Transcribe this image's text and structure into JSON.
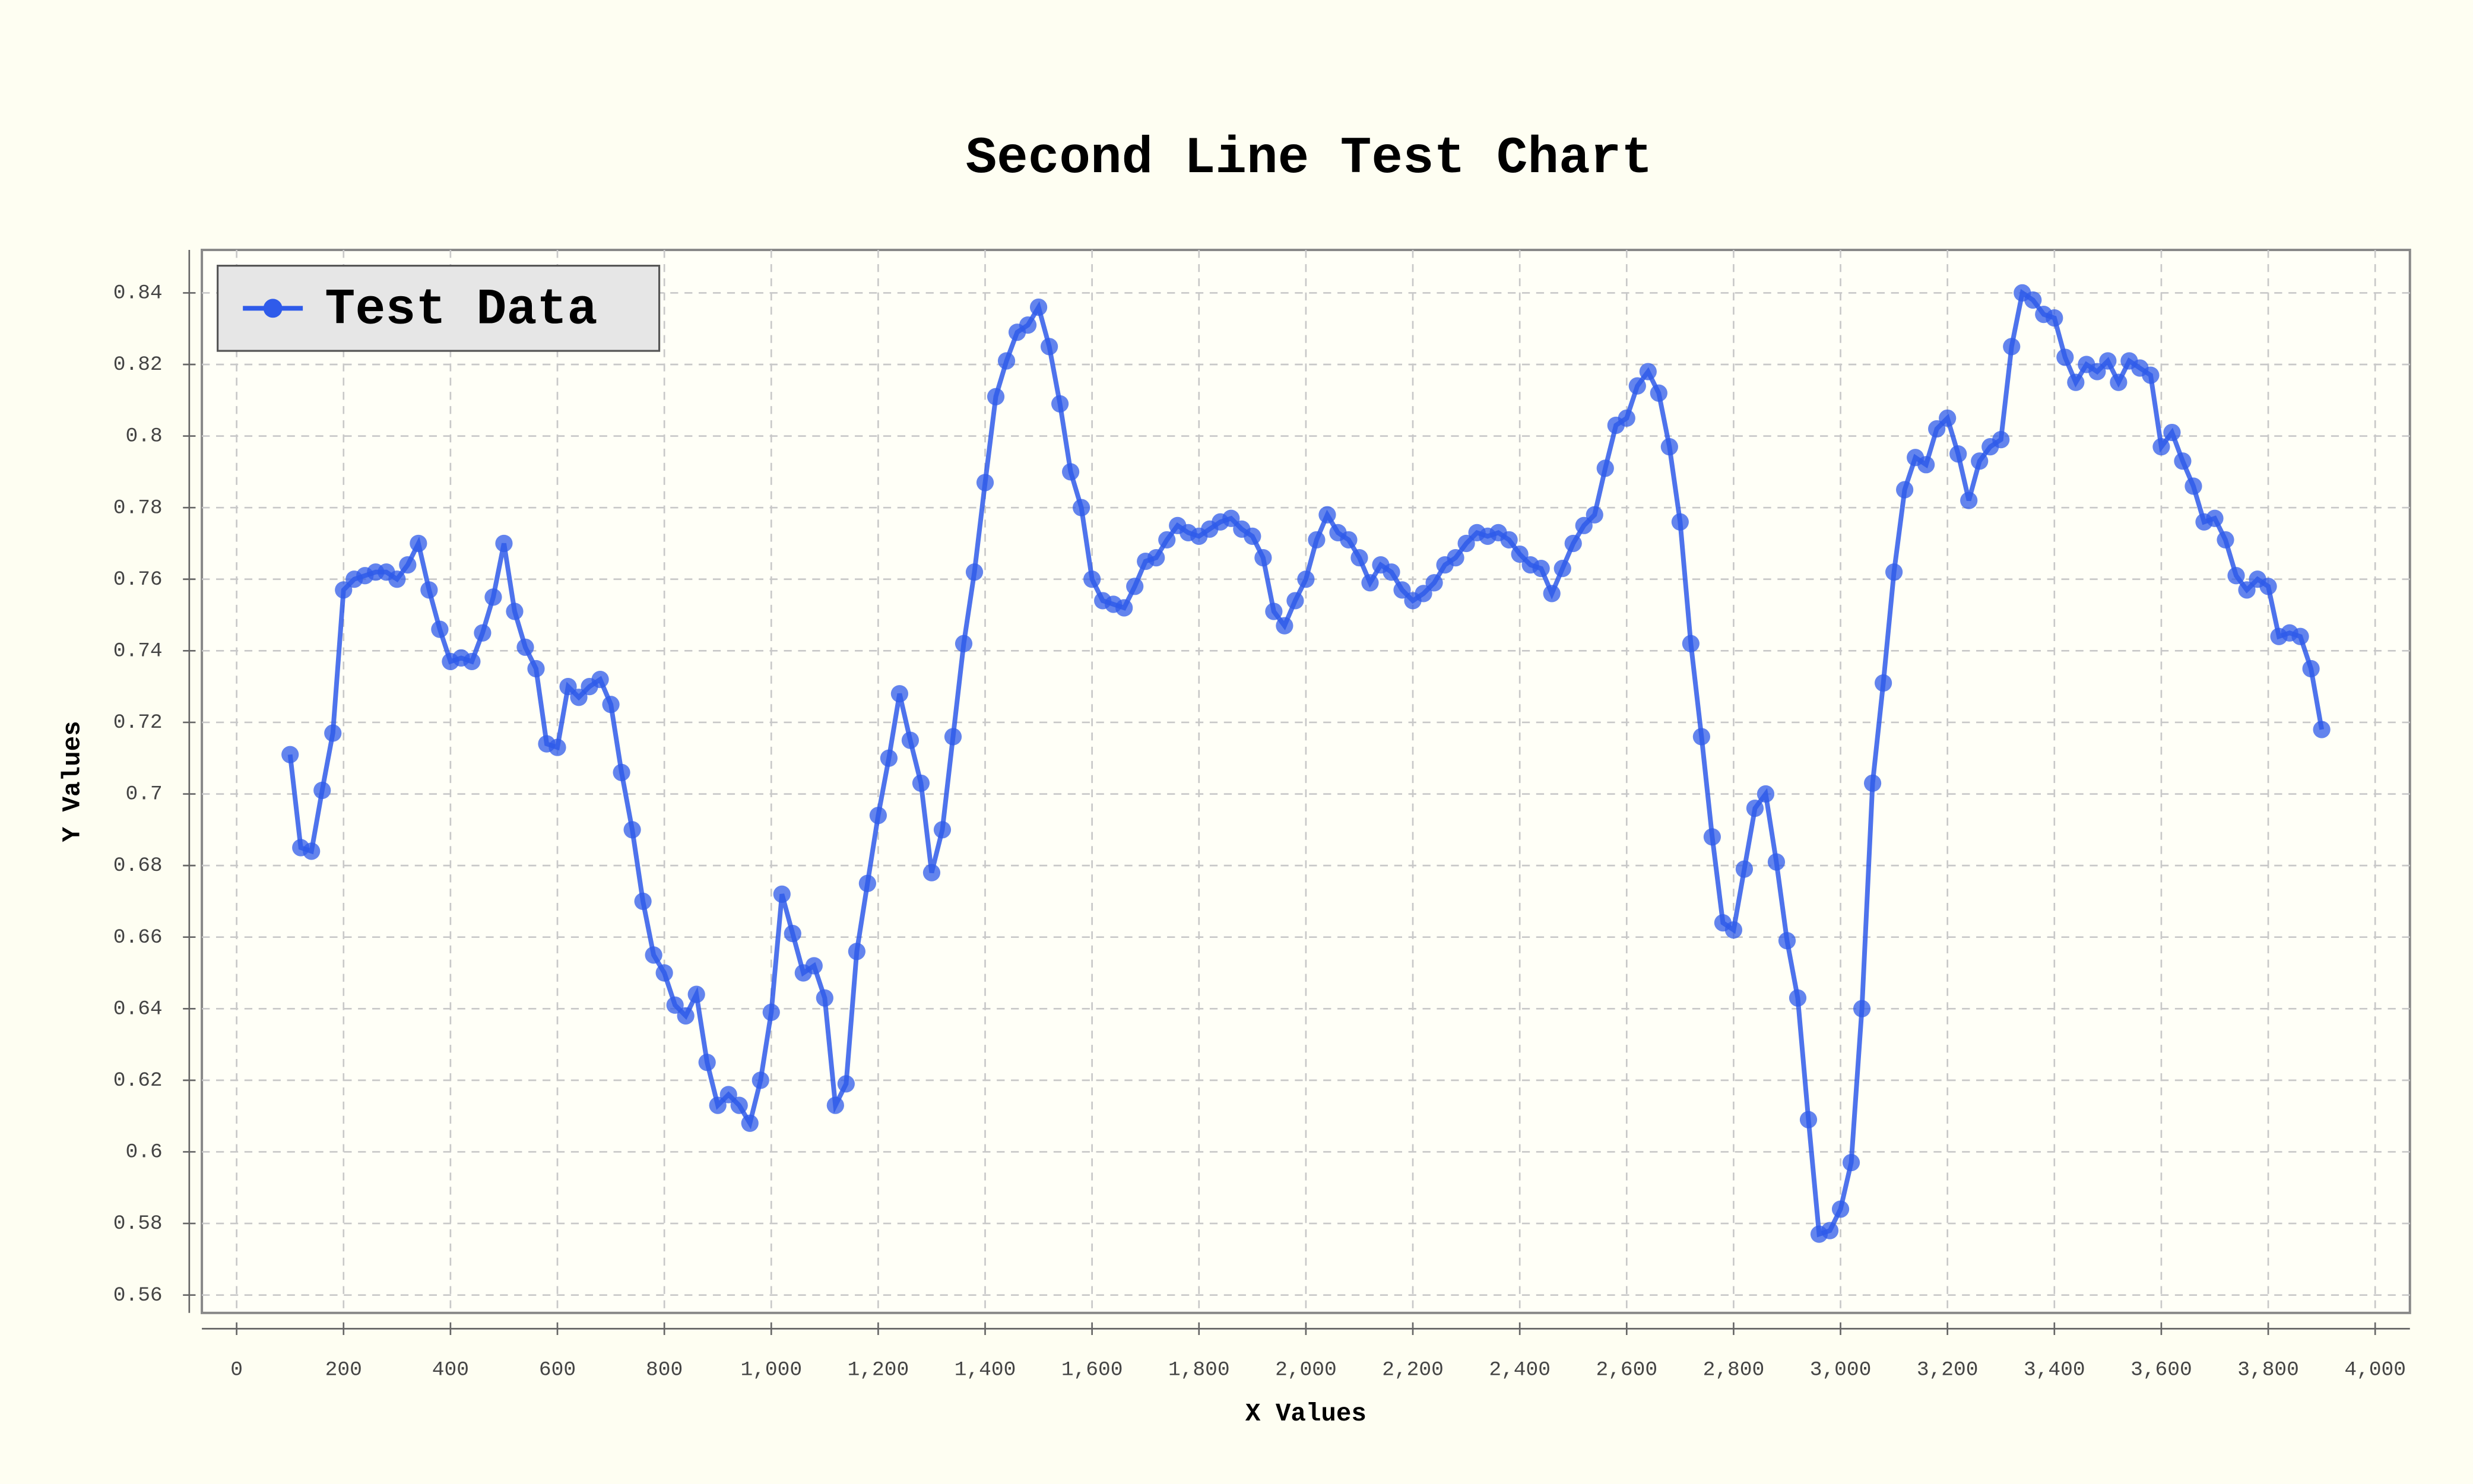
{
  "chart_data": {
    "type": "line",
    "title": "Second Line Test Chart",
    "x_label": "X Values",
    "y_label": "Y Values",
    "x": [
      100,
      120,
      140,
      160,
      180,
      200,
      220,
      240,
      260,
      280,
      300,
      320,
      340,
      360,
      380,
      400,
      420,
      440,
      460,
      480,
      500,
      520,
      540,
      560,
      580,
      600,
      620,
      640,
      660,
      680,
      700,
      720,
      740,
      760,
      780,
      800,
      820,
      840,
      860,
      880,
      900,
      920,
      940,
      960,
      980,
      1000,
      1020,
      1040,
      1060,
      1080,
      1100,
      1120,
      1140,
      1160,
      1180,
      1200,
      1220,
      1240,
      1260,
      1280,
      1300,
      1320,
      1340,
      1360,
      1380,
      1400,
      1420,
      1440,
      1460,
      1480,
      1500,
      1520,
      1540,
      1560,
      1580,
      1600,
      1620,
      1640,
      1660,
      1680,
      1700,
      1720,
      1740,
      1760,
      1780,
      1800,
      1820,
      1840,
      1860,
      1880,
      1900,
      1920,
      1940,
      1960,
      1980,
      2000,
      2020,
      2040,
      2060,
      2080,
      2100,
      2120,
      2140,
      2160,
      2180,
      2200,
      2220,
      2240,
      2260,
      2280,
      2300,
      2320,
      2340,
      2360,
      2380,
      2400,
      2420,
      2440,
      2460,
      2480,
      2500,
      2520,
      2540,
      2560,
      2580,
      2600,
      2620,
      2640,
      2660,
      2680,
      2700,
      2720,
      2740,
      2760,
      2780,
      2800,
      2820,
      2840,
      2860,
      2880,
      2900,
      2920,
      2940,
      2960,
      2980,
      3000,
      3020,
      3040,
      3060,
      3080,
      3100,
      3120,
      3140,
      3160,
      3180,
      3200,
      3220,
      3240,
      3260,
      3280,
      3300,
      3320,
      3340,
      3360,
      3380,
      3400,
      3420,
      3440,
      3460,
      3480,
      3500,
      3520,
      3540,
      3560,
      3580,
      3600,
      3620,
      3640,
      3660,
      3680,
      3700,
      3720,
      3740,
      3760,
      3780,
      3800,
      3820,
      3840,
      3860,
      3880,
      3900
    ],
    "series": [
      {
        "name": "Test Data",
        "color": "#2f5bea",
        "values": [
          0.711,
          0.685,
          0.684,
          0.701,
          0.717,
          0.757,
          0.76,
          0.761,
          0.762,
          0.762,
          0.76,
          0.764,
          0.77,
          0.757,
          0.746,
          0.737,
          0.738,
          0.737,
          0.745,
          0.755,
          0.77,
          0.751,
          0.741,
          0.735,
          0.714,
          0.713,
          0.73,
          0.727,
          0.73,
          0.732,
          0.725,
          0.706,
          0.69,
          0.67,
          0.655,
          0.65,
          0.641,
          0.638,
          0.644,
          0.625,
          0.613,
          0.616,
          0.613,
          0.608,
          0.62,
          0.639,
          0.672,
          0.661,
          0.65,
          0.652,
          0.643,
          0.613,
          0.619,
          0.656,
          0.675,
          0.694,
          0.71,
          0.728,
          0.715,
          0.703,
          0.678,
          0.69,
          0.716,
          0.742,
          0.762,
          0.787,
          0.811,
          0.821,
          0.829,
          0.831,
          0.836,
          0.825,
          0.809,
          0.79,
          0.78,
          0.76,
          0.754,
          0.753,
          0.752,
          0.758,
          0.765,
          0.766,
          0.771,
          0.775,
          0.773,
          0.772,
          0.774,
          0.776,
          0.777,
          0.774,
          0.772,
          0.766,
          0.751,
          0.747,
          0.754,
          0.76,
          0.771,
          0.778,
          0.773,
          0.771,
          0.766,
          0.759,
          0.764,
          0.762,
          0.757,
          0.754,
          0.756,
          0.759,
          0.764,
          0.766,
          0.77,
          0.773,
          0.772,
          0.773,
          0.771,
          0.767,
          0.764,
          0.763,
          0.756,
          0.763,
          0.77,
          0.775,
          0.778,
          0.791,
          0.803,
          0.805,
          0.814,
          0.818,
          0.812,
          0.797,
          0.776,
          0.742,
          0.716,
          0.688,
          0.664,
          0.662,
          0.679,
          0.696,
          0.7,
          0.681,
          0.659,
          0.643,
          0.609,
          0.577,
          0.578,
          0.584,
          0.597,
          0.64,
          0.703,
          0.731,
          0.762,
          0.785,
          0.794,
          0.792,
          0.802,
          0.805,
          0.795,
          0.782,
          0.793,
          0.797,
          0.799,
          0.825,
          0.84,
          0.838,
          0.834,
          0.833,
          0.822,
          0.815,
          0.82,
          0.818,
          0.821,
          0.815,
          0.821,
          0.819,
          0.817,
          0.797,
          0.801,
          0.793,
          0.786,
          0.776,
          0.777,
          0.771,
          0.761,
          0.757,
          0.76,
          0.758,
          0.744,
          0.745,
          0.744,
          0.735,
          0.718
        ]
      }
    ],
    "xlim": [
      -65,
      4065
    ],
    "ylim": [
      0.555,
      0.852
    ],
    "xticks": [
      0,
      200,
      400,
      600,
      800,
      {
        "value": 1000,
        "label": "1,000"
      },
      {
        "value": 1200,
        "label": "1,200"
      },
      {
        "value": 1400,
        "label": "1,400"
      },
      {
        "value": 1600,
        "label": "1,600"
      },
      {
        "value": 1800,
        "label": "1,800"
      },
      {
        "value": 2000,
        "label": "2,000"
      },
      {
        "value": 2200,
        "label": "2,200"
      },
      {
        "value": 2400,
        "label": "2,400"
      },
      {
        "value": 2600,
        "label": "2,600"
      },
      {
        "value": 2800,
        "label": "2,800"
      },
      {
        "value": 3000,
        "label": "3,000"
      },
      {
        "value": 3200,
        "label": "3,200"
      },
      {
        "value": 3400,
        "label": "3,400"
      },
      {
        "value": 3600,
        "label": "3,600"
      },
      {
        "value": 3800,
        "label": "3,800"
      },
      {
        "value": 4000,
        "label": "4,000"
      }
    ],
    "yticks": [
      0.56,
      0.58,
      0.6,
      0.62,
      0.64,
      0.66,
      0.68,
      0.7,
      0.72,
      0.74,
      0.76,
      0.78,
      0.8,
      0.82,
      0.84
    ],
    "grid": true,
    "legend": "upper-left"
  }
}
